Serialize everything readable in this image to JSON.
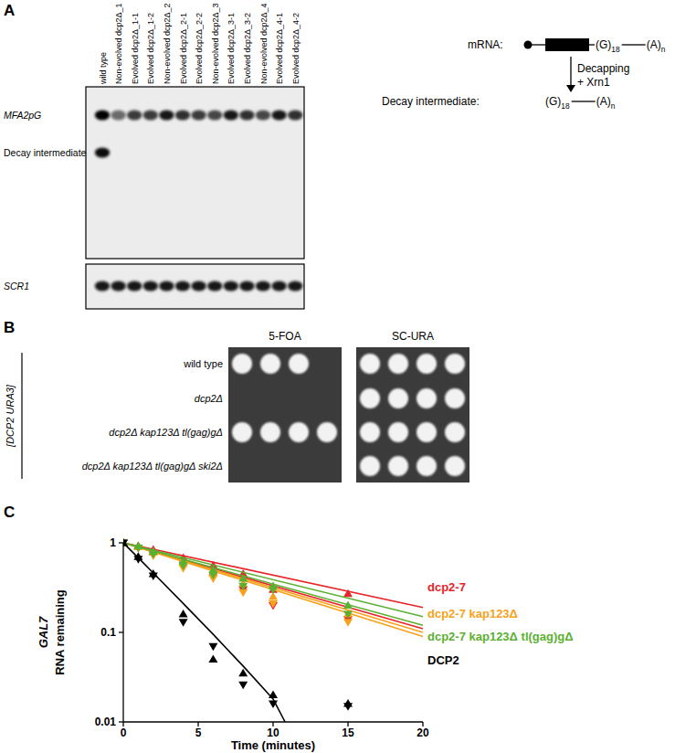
{
  "panel_a": {
    "label": "A",
    "lanes": [
      "wild type",
      "Non-evolved dcp2Δ_1",
      "Evolved dcp2Δ_1-1",
      "Evolved dcp2Δ_1-2",
      "Non-evolved dcp2Δ_2",
      "Evolved dcp2Δ_2-1",
      "Evolved dcp2Δ_2-2",
      "Non-evolved dcp2Δ_3",
      "Evolved dcp2Δ_3-1",
      "Evolved dcp2Δ_3-2",
      "Non-evolved dcp2Δ_4",
      "Evolved dcp2Δ_4-1",
      "Evolved dcp2Δ_4-2"
    ],
    "blots": [
      {
        "rows": [
          {
            "label": "MFA2pG",
            "signal": [
              1,
              0.55,
              0.75,
              0.75,
              0.9,
              0.8,
              0.75,
              0.7,
              0.9,
              0.8,
              0.7,
              0.9,
              0.8
            ]
          },
          {
            "label": "Decay intermediate",
            "signal": [
              0.95,
              0,
              0,
              0,
              0,
              0,
              0,
              0,
              0,
              0,
              0,
              0,
              0
            ]
          }
        ]
      },
      {
        "rows": [
          {
            "label": "SCR1",
            "signal": [
              0.9,
              0.9,
              0.9,
              0.9,
              0.9,
              0.9,
              0.9,
              0.9,
              0.9,
              0.9,
              0.9,
              0.9,
              0.9
            ]
          }
        ]
      }
    ],
    "scheme": {
      "mrna_label": "mRNA:",
      "g_tract": {
        "base": "(G)",
        "sub": "18"
      },
      "tail": {
        "base": "(A)",
        "sub": "n"
      },
      "step": [
        "Decapping",
        "+ Xrn1"
      ],
      "product_label": "Decay intermediate:"
    }
  },
  "panel_b": {
    "label": "B",
    "plasmid": "[DCP2 URA3]",
    "strains": [
      "wild type",
      "dcp2Δ",
      "dcp2Δ kap123Δ tl(gag)gΔ",
      "dcp2Δ kap123Δ tl(gag)gΔ ski2Δ"
    ],
    "media": [
      {
        "name": "5-FOA",
        "growth": [
          [
            true,
            true,
            true,
            false
          ],
          [
            false,
            false,
            false,
            false
          ],
          [
            true,
            true,
            true,
            true
          ],
          [
            false,
            false,
            false,
            false
          ]
        ]
      },
      {
        "name": "SC-URA",
        "growth": [
          [
            true,
            true,
            true,
            true
          ],
          [
            true,
            true,
            true,
            true
          ],
          [
            true,
            true,
            true,
            true
          ],
          [
            true,
            true,
            true,
            true
          ]
        ]
      }
    ]
  },
  "chart_data": {
    "type": "line",
    "label": "C",
    "x_label": "Time (minutes)",
    "y_label": [
      "GAL7",
      "RNA remaining"
    ],
    "x": [
      0,
      1,
      2,
      4,
      6,
      8,
      10,
      15
    ],
    "xlim": [
      0,
      20
    ],
    "xticks": [
      0,
      5,
      10,
      15,
      20
    ],
    "ylim": [
      0.01,
      1
    ],
    "yticks": [
      0.01,
      0.1,
      1
    ],
    "log": "y",
    "grid": false,
    "series": [
      {
        "name": "dcp2-7",
        "color": "#e8232a",
        "replicates": [
          {
            "marker": "triangle-up",
            "values": [
              1,
              0.92,
              0.84,
              0.68,
              0.56,
              0.45,
              0.3,
              0.27
            ]
          },
          {
            "marker": "triangle-down",
            "values": [
              1,
              0.88,
              0.76,
              0.57,
              0.42,
              0.3,
              0.2,
              0.14
            ]
          }
        ],
        "fits": [
          {
            "x": [
              0,
              20
            ],
            "values": [
              1,
              0.19
            ]
          },
          {
            "x": [
              0,
              20
            ],
            "values": [
              1,
              0.11
            ]
          }
        ]
      },
      {
        "name": "dcp2-7 kap123Δ",
        "color": "#f7a21b",
        "replicates": [
          {
            "marker": "triangle-up",
            "values": [
              1,
              0.9,
              0.78,
              0.6,
              0.46,
              0.35,
              0.25,
              0.16
            ]
          },
          {
            "marker": "triangle-down",
            "values": [
              1,
              0.88,
              0.72,
              0.52,
              0.4,
              0.28,
              0.21,
              0.13
            ]
          }
        ],
        "fits": [
          {
            "x": [
              0,
              20
            ],
            "values": [
              1,
              0.1
            ]
          },
          {
            "x": [
              0,
              20
            ],
            "values": [
              1,
              0.09
            ]
          }
        ]
      },
      {
        "name": "dcp2-7 kap123Δ tl(gag)gΔ",
        "color": "#5cb031",
        "replicates": [
          {
            "marker": "triangle-up",
            "values": [
              1,
              0.92,
              0.8,
              0.62,
              0.5,
              0.4,
              0.33,
              0.2
            ]
          },
          {
            "marker": "triangle-down",
            "values": [
              1,
              0.88,
              0.75,
              0.56,
              0.44,
              0.33,
              0.3,
              0.16
            ]
          }
        ],
        "fits": [
          {
            "x": [
              0,
              20
            ],
            "values": [
              1,
              0.15
            ]
          },
          {
            "x": [
              0,
              20
            ],
            "values": [
              1,
              0.12
            ]
          }
        ]
      },
      {
        "name": "DCP2",
        "color": "#000000",
        "replicates": [
          {
            "marker": "triangle-up",
            "values": [
              1,
              0.7,
              0.45,
              0.16,
              0.05,
              0.035,
              0.02,
              0.016
            ]
          },
          {
            "marker": "triangle-down",
            "values": [
              1,
              0.66,
              0.43,
              0.13,
              0.07,
              0.026,
              0.016,
              0.015
            ]
          }
        ],
        "fits": [
          {
            "x": [
              0,
              1,
              2,
              4,
              6,
              8,
              10,
              10.8
            ],
            "values": [
              1,
              0.68,
              0.46,
              0.21,
              0.095,
              0.042,
              0.018,
              0.01
            ]
          }
        ]
      }
    ]
  }
}
